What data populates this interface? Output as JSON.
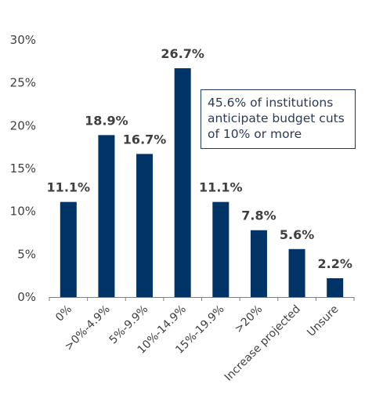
{
  "chart_data": {
    "type": "bar",
    "categories": [
      "0%",
      ">0%-4.9%",
      "5%-9.9%",
      "10%-14.9%",
      "15%-19.9%",
      ">20%",
      "Increase projected",
      "Unsure"
    ],
    "values": [
      11.1,
      18.9,
      16.7,
      26.7,
      11.1,
      7.8,
      5.6,
      2.2
    ],
    "data_labels": [
      "11.1%",
      "18.9%",
      "16.7%",
      "26.7%",
      "11.1%",
      "7.8%",
      "5.6%",
      "2.2%"
    ],
    "title": "",
    "xlabel": "",
    "ylabel": "",
    "ylim": [
      0,
      30
    ],
    "yticks": [
      0,
      5,
      10,
      15,
      20,
      25,
      30
    ],
    "ytick_labels": [
      "0%",
      "5%",
      "10%",
      "15%",
      "20%",
      "25%",
      "30%"
    ],
    "grid": false,
    "bar_color": "#003366",
    "annotation": [
      "45.6% of institutions",
      "anticipate budget cuts",
      "of 10% or more"
    ]
  }
}
